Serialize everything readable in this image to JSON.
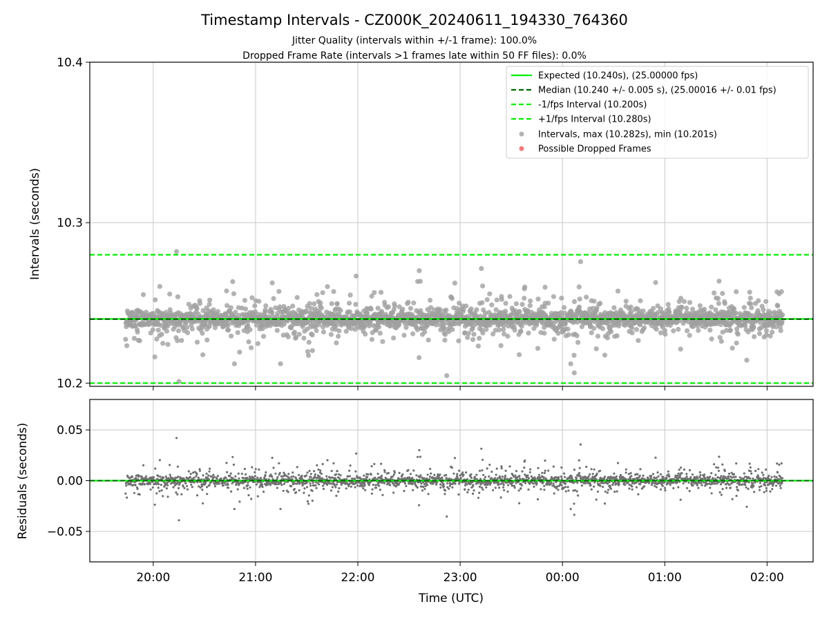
{
  "chart_data": [
    {
      "type": "scatter",
      "title": "Timestamp Intervals - CZ000K_20240611_194330_764360",
      "subtitle_lines": [
        "Jitter Quality (intervals within +/-1 frame): 100.0%",
        "Dropped Frame Rate (intervals >1 frames late within 50 FF files): 0.0%"
      ],
      "xlabel": "",
      "ylabel": "Intervals (seconds)",
      "ylim": [
        10.198,
        10.4
      ],
      "y_ticks": [
        10.2,
        10.3,
        10.4
      ],
      "y_tick_labels": [
        "10.2",
        "10.3",
        "10.4"
      ],
      "grid": true,
      "legend_position": "top-right",
      "reference_lines": [
        {
          "name": "Expected (10.240s), (25.00000 fps)",
          "value": 10.24,
          "color": "#00ee00",
          "style": "solid"
        },
        {
          "name": "Median (10.240 +/- 0.005 s), (25.00016 +/- 0.01 fps)",
          "value": 10.2399,
          "color": "#006400",
          "style": "dashed"
        },
        {
          "name": "-1/fps Interval (10.200s)",
          "value": 10.2,
          "color": "#00ee00",
          "style": "dashed"
        },
        {
          "name": "+1/fps Interval (10.280s)",
          "value": 10.28,
          "color": "#00ee00",
          "style": "dashed"
        }
      ],
      "series": [
        {
          "name": "Intervals, max (10.282s), min (10.201s)",
          "color": "#a0a0a0",
          "mean": 10.24,
          "std": 0.008,
          "max": 10.282,
          "min": 10.201
        },
        {
          "name": "Possible Dropped Frames",
          "color": "#f05a5a",
          "count": 0
        }
      ]
    },
    {
      "type": "scatter",
      "xlabel": "Time (UTC)",
      "ylabel": "Residuals (seconds)",
      "ylim": [
        -0.08,
        0.08
      ],
      "y_ticks": [
        -0.05,
        0.0,
        0.05
      ],
      "y_tick_labels": [
        "−0.05",
        "0.00",
        "0.05"
      ],
      "x_range_hours": [
        19.38,
        26.45
      ],
      "x_data_range_hours": [
        19.73,
        26.15
      ],
      "x_ticks": [
        20,
        21,
        22,
        23,
        24,
        25,
        26
      ],
      "x_tick_labels": [
        "20:00",
        "21:00",
        "22:00",
        "23:00",
        "00:00",
        "01:00",
        "02:00"
      ],
      "grid": true,
      "zero_line_color": "#00ee00",
      "median_line_color": "#006400",
      "series": [
        {
          "name": "Residuals",
          "color": "#707070",
          "max": 0.042,
          "min": -0.039
        }
      ]
    }
  ]
}
